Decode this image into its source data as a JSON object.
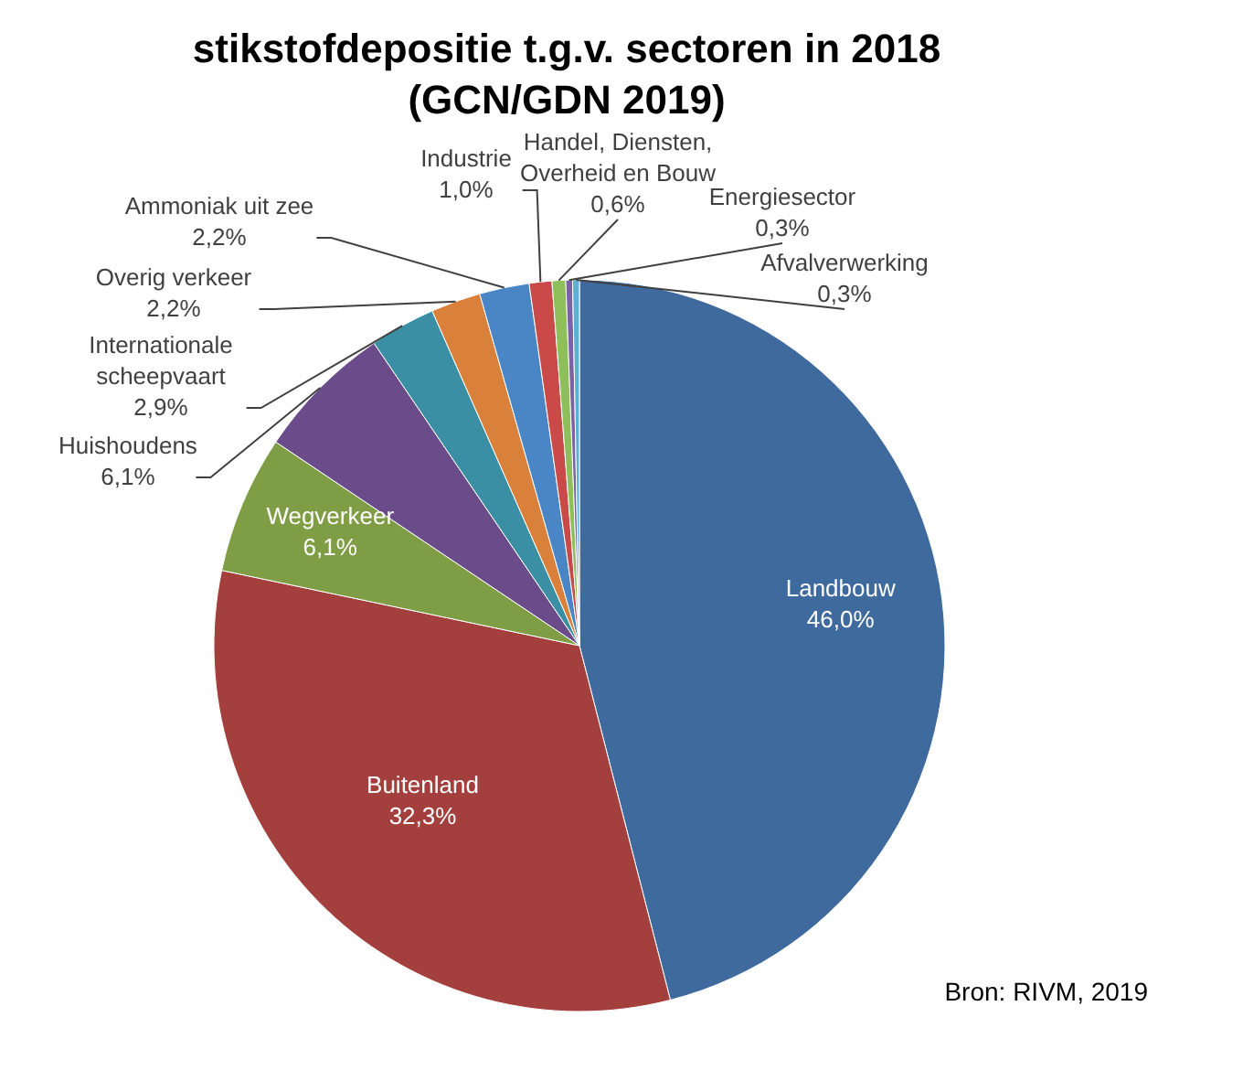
{
  "chart_data": {
    "type": "pie",
    "title": "stikstofdepositie t.g.v. sectoren in 2018",
    "subtitle": "(GCN/GDN 2019)",
    "categories": [
      "Landbouw",
      "Buitenland",
      "Wegverkeer",
      "Huishoudens",
      "Internationale scheepvaart",
      "Overig verkeer",
      "Ammoniak uit zee",
      "Industrie",
      "Handel, Diensten, Overheid en Bouw",
      "Energiesector",
      "Afvalverwerking"
    ],
    "values": [
      46.0,
      32.3,
      6.1,
      6.1,
      2.9,
      2.2,
      2.2,
      1.0,
      0.6,
      0.3,
      0.3
    ],
    "value_labels": [
      "46,0%",
      "32,3%",
      "6,1%",
      "6,1%",
      "2,9%",
      "2,2%",
      "2,2%",
      "1,0%",
      "0,6%",
      "0,3%",
      "0,3%"
    ],
    "colors": [
      "#3f6a9e",
      "#a3403d",
      "#7f9d45",
      "#6a4c8a",
      "#3a8fa5",
      "#d9803a",
      "#4a86c5",
      "#c94a48",
      "#8fbf5a",
      "#7b62a6",
      "#5fb0cf"
    ],
    "annotations": [
      "Bron: RIVM, 2019"
    ]
  }
}
